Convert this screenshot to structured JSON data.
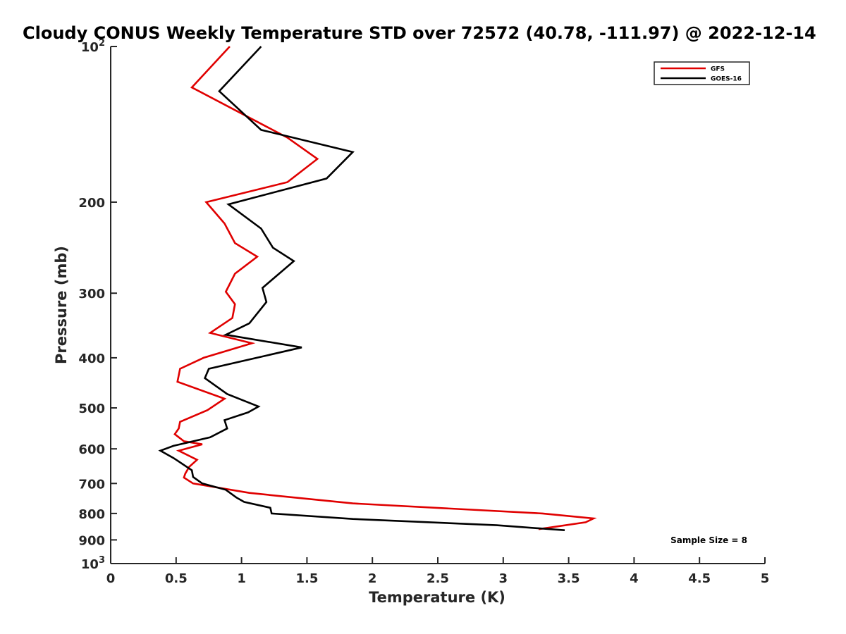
{
  "chart_data": {
    "type": "line",
    "title": "Cloudy CONUS Weekly Temperature STD over 72572 (40.78, -111.97) @ 2022-12-14",
    "xlabel": "Temperature (K)",
    "ylabel": "Pressure (mb)",
    "xlim": [
      0,
      5
    ],
    "ylim": [
      100,
      1000
    ],
    "y_scale": "log",
    "y_reversed": true,
    "x_ticks": [
      0,
      0.5,
      1,
      1.5,
      2,
      2.5,
      3,
      3.5,
      4,
      4.5,
      5
    ],
    "x_tick_labels": [
      "0",
      "0.5",
      "1",
      "1.5",
      "2",
      "2.5",
      "3",
      "3.5",
      "4",
      "4.5",
      "5"
    ],
    "y_ticks": [
      {
        "value": 100,
        "label": "10",
        "sup": "2"
      },
      {
        "value": 200,
        "label": "200",
        "sup": ""
      },
      {
        "value": 300,
        "label": "300",
        "sup": ""
      },
      {
        "value": 400,
        "label": "400",
        "sup": ""
      },
      {
        "value": 500,
        "label": "500",
        "sup": ""
      },
      {
        "value": 600,
        "label": "600",
        "sup": ""
      },
      {
        "value": 700,
        "label": "700",
        "sup": ""
      },
      {
        "value": 800,
        "label": "800",
        "sup": ""
      },
      {
        "value": 900,
        "label": "900",
        "sup": ""
      },
      {
        "value": 1000,
        "label": "10",
        "sup": "3"
      }
    ],
    "grid": false,
    "legend_position": "top-right",
    "annotation": "Sample Size = 8",
    "series": [
      {
        "name": "GFS",
        "color": "#e00000",
        "points": [
          [
            0.91,
            100
          ],
          [
            0.62,
            120
          ],
          [
            1.35,
            150
          ],
          [
            1.58,
            165
          ],
          [
            1.35,
            183
          ],
          [
            0.73,
            200
          ],
          [
            0.87,
            220
          ],
          [
            0.95,
            240
          ],
          [
            1.12,
            255
          ],
          [
            0.95,
            275
          ],
          [
            0.88,
            298
          ],
          [
            0.95,
            315
          ],
          [
            0.93,
            335
          ],
          [
            0.76,
            358
          ],
          [
            1.08,
            375
          ],
          [
            0.71,
            400
          ],
          [
            0.53,
            420
          ],
          [
            0.51,
            445
          ],
          [
            0.87,
            480
          ],
          [
            0.74,
            505
          ],
          [
            0.53,
            532
          ],
          [
            0.52,
            548
          ],
          [
            0.49,
            562
          ],
          [
            0.56,
            580
          ],
          [
            0.7,
            588
          ],
          [
            0.52,
            605
          ],
          [
            0.66,
            630
          ],
          [
            0.6,
            650
          ],
          [
            0.57,
            670
          ],
          [
            0.56,
            682
          ],
          [
            0.63,
            700
          ],
          [
            1.06,
            730
          ],
          [
            1.4,
            745
          ],
          [
            1.85,
            765
          ],
          [
            3.3,
            800
          ],
          [
            3.69,
            818
          ],
          [
            3.63,
            832
          ],
          [
            3.27,
            858
          ]
        ]
      },
      {
        "name": "GOES-16",
        "color": "#000000",
        "points": [
          [
            1.15,
            100
          ],
          [
            0.83,
            122
          ],
          [
            1.15,
            145
          ],
          [
            1.85,
            160
          ],
          [
            1.65,
            180
          ],
          [
            0.9,
            202
          ],
          [
            1.15,
            225
          ],
          [
            1.24,
            245
          ],
          [
            1.4,
            260
          ],
          [
            1.16,
            293
          ],
          [
            1.19,
            312
          ],
          [
            1.06,
            343
          ],
          [
            0.88,
            361
          ],
          [
            1.46,
            382
          ],
          [
            0.75,
            420
          ],
          [
            0.72,
            438
          ],
          [
            0.89,
            470
          ],
          [
            1.13,
            497
          ],
          [
            1.05,
            510
          ],
          [
            0.87,
            528
          ],
          [
            0.89,
            548
          ],
          [
            0.76,
            570
          ],
          [
            0.48,
            592
          ],
          [
            0.38,
            605
          ],
          [
            0.48,
            625
          ],
          [
            0.62,
            660
          ],
          [
            0.63,
            680
          ],
          [
            0.7,
            700
          ],
          [
            0.88,
            720
          ],
          [
            0.96,
            745
          ],
          [
            1.02,
            760
          ],
          [
            1.22,
            780
          ],
          [
            1.23,
            800
          ],
          [
            1.85,
            820
          ],
          [
            2.95,
            843
          ],
          [
            3.47,
            862
          ]
        ]
      }
    ]
  }
}
